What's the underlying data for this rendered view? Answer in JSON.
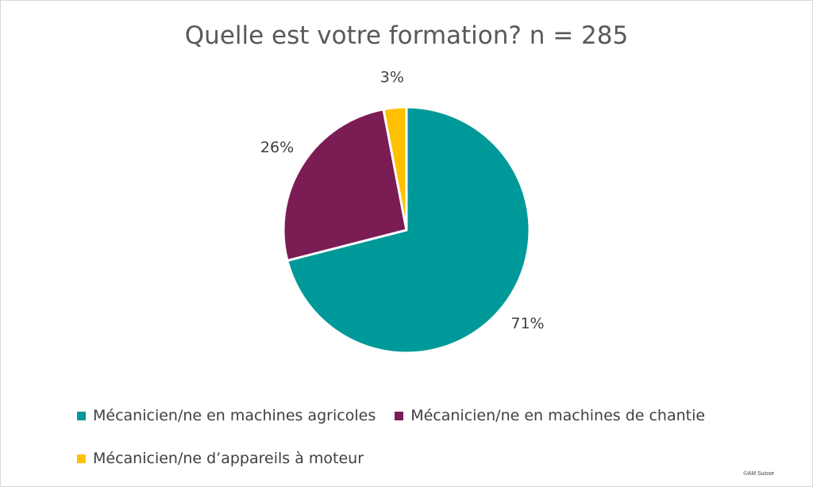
{
  "chart_data": {
    "type": "pie",
    "title": "Quelle est votre formation? n = 285",
    "categories": [
      "Mécanicien/ne en machines agricoles",
      "Mécanicien/ne en machines de chantie",
      "Mécanicien/ne d’appareils à moteur"
    ],
    "values": [
      71,
      26,
      3
    ],
    "labels": [
      "71%",
      "26%",
      "3%"
    ],
    "colors": [
      "#009999",
      "#7B1C55",
      "#FFC000"
    ],
    "legend_position": "bottom"
  },
  "footer": {
    "copyright": "©AM Suisse"
  }
}
